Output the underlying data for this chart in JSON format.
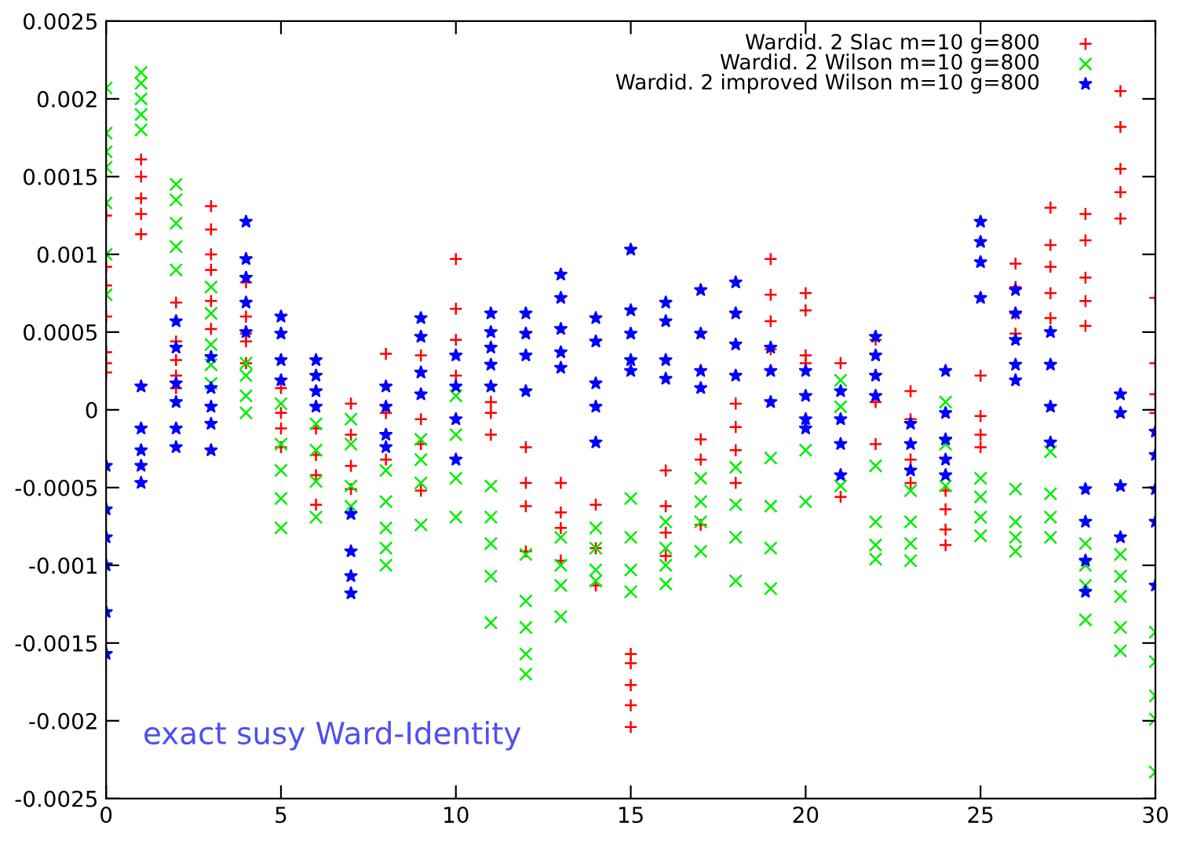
{
  "chart_data": {
    "type": "scatter",
    "xlim": [
      0,
      30
    ],
    "xticks": [
      0,
      5,
      10,
      15,
      20,
      25,
      30
    ],
    "ylim": [
      -0.0025,
      0.0025
    ],
    "yticks": [
      -0.0025,
      -0.002,
      -0.0015,
      -0.001,
      -0.0005,
      0,
      0.0005,
      0.001,
      0.0015,
      0.002,
      0.0025
    ],
    "grid": false,
    "legend": "top right",
    "annotations": [
      "exact susy Ward-Identity"
    ],
    "series": [
      {
        "name": "Wardid. 2 Slac m=10 g=800",
        "color": "#ff0000",
        "marker": "cross",
        "x": [
          0,
          0,
          0,
          0,
          0,
          0,
          0,
          1,
          1,
          1,
          1,
          1,
          2,
          2,
          2,
          2,
          2,
          3,
          3,
          3,
          3,
          3,
          3,
          4,
          4,
          4,
          4,
          4,
          5,
          5,
          5,
          5,
          6,
          6,
          6,
          6,
          7,
          7,
          7,
          7,
          8,
          8,
          8,
          9,
          9,
          9,
          9,
          10,
          10,
          10,
          10,
          11,
          11,
          11,
          12,
          12,
          12,
          12,
          13,
          13,
          13,
          13,
          14,
          14,
          14,
          15,
          15,
          15,
          15,
          15,
          16,
          16,
          16,
          16,
          17,
          17,
          17,
          18,
          18,
          18,
          18,
          19,
          19,
          19,
          19,
          20,
          20,
          20,
          20,
          21,
          21,
          22,
          22,
          22,
          23,
          23,
          23,
          23,
          24,
          24,
          24,
          24,
          25,
          25,
          25,
          25,
          26,
          26,
          26,
          26,
          27,
          27,
          27,
          27,
          27,
          28,
          28,
          28,
          28,
          28,
          29,
          29,
          29,
          29,
          29,
          30,
          30,
          30,
          30
        ],
        "values": [
          0.00125,
          0.00092,
          0.0008,
          0.0006,
          0.00037,
          0.0003,
          0.00024,
          0.00161,
          0.0015,
          0.00136,
          0.00126,
          0.00113,
          0.00069,
          0.00044,
          0.00032,
          0.00022,
          0.00014,
          0.00131,
          0.00116,
          0.001,
          0.0009,
          0.0007,
          0.00052,
          0.00082,
          0.0006,
          0.00049,
          0.00044,
          0.0003,
          0.00014,
          -2e-05,
          -0.00012,
          -0.00024,
          -0.00012,
          -0.00029,
          -0.00042,
          -0.00061,
          4e-05,
          -0.00016,
          -0.00036,
          -0.00051,
          0.00036,
          -2e-05,
          -0.00032,
          0.00035,
          -6e-05,
          -0.00022,
          -0.00052,
          0.00097,
          0.00065,
          0.00045,
          0.00022,
          5e-05,
          -2e-05,
          -0.00016,
          -0.00024,
          -0.00047,
          -0.00062,
          -0.00091,
          -0.00047,
          -0.00066,
          -0.00076,
          -0.00097,
          -0.00061,
          -0.00089,
          -0.00113,
          -0.00157,
          -0.00163,
          -0.00177,
          -0.0019,
          -0.00204,
          -0.00039,
          -0.00062,
          -0.00079,
          -0.00094,
          -0.00019,
          -0.00032,
          -0.00074,
          4e-05,
          -0.00011,
          -0.00026,
          -0.00047,
          0.00097,
          0.00074,
          0.00057,
          0.00039,
          0.00075,
          0.00064,
          0.00035,
          0.0003,
          0.0003,
          -0.00056,
          0.00045,
          5e-05,
          -0.00022,
          0.00012,
          -6e-05,
          -0.00032,
          -0.00047,
          -0.00052,
          -0.00064,
          -0.00077,
          -0.00087,
          0.00022,
          -4e-05,
          -0.00016,
          -0.00024,
          0.00094,
          0.00079,
          0.00062,
          0.00049,
          0.0013,
          0.00106,
          0.00092,
          0.00075,
          0.00059,
          0.00126,
          0.00109,
          0.00085,
          0.0007,
          0.00054,
          0.00205,
          0.00182,
          0.00155,
          0.0014,
          0.00123,
          0.00072,
          0.0003,
          0.0001,
          -2e-05
        ]
      },
      {
        "name": "Wardid. 2 Wilson m=10 g=800",
        "color": "#00ee00",
        "marker": "x",
        "x": [
          0,
          0,
          0,
          0,
          0,
          0,
          0,
          1,
          1,
          1,
          1,
          1,
          2,
          2,
          2,
          2,
          2,
          3,
          3,
          3,
          3,
          3,
          4,
          4,
          4,
          4,
          5,
          5,
          5,
          5,
          5,
          6,
          6,
          6,
          6,
          7,
          7,
          7,
          7,
          8,
          8,
          8,
          8,
          8,
          9,
          9,
          9,
          9,
          10,
          10,
          10,
          10,
          11,
          11,
          11,
          11,
          11,
          12,
          12,
          12,
          12,
          12,
          13,
          13,
          13,
          13,
          14,
          14,
          14,
          14,
          15,
          15,
          15,
          15,
          16,
          16,
          16,
          16,
          17,
          17,
          17,
          17,
          18,
          18,
          18,
          18,
          19,
          19,
          19,
          19,
          20,
          20,
          21,
          21,
          21,
          22,
          22,
          22,
          22,
          23,
          23,
          23,
          23,
          24,
          24,
          24,
          25,
          25,
          25,
          25,
          26,
          26,
          26,
          26,
          27,
          27,
          27,
          27,
          28,
          28,
          28,
          28,
          29,
          29,
          29,
          29,
          29,
          30,
          30,
          30,
          30,
          30
        ],
        "values": [
          0.00207,
          0.00178,
          0.00166,
          0.00156,
          0.00133,
          0.001,
          0.00074,
          0.00217,
          0.0021,
          0.002,
          0.0019,
          0.0018,
          0.00145,
          0.00135,
          0.0012,
          0.00105,
          0.0009,
          0.00079,
          0.00062,
          0.00042,
          0.00029,
          0.00017,
          0.0003,
          0.00022,
          9e-05,
          -2e-05,
          4e-05,
          -0.00022,
          -0.00039,
          -0.00057,
          -0.00076,
          -9e-05,
          -0.00026,
          -0.00046,
          -0.00069,
          -6e-05,
          -0.00022,
          -0.00049,
          -0.00062,
          -0.00039,
          -0.00059,
          -0.00076,
          -0.00089,
          -0.001,
          -0.00019,
          -0.00032,
          -0.00047,
          -0.00074,
          9e-05,
          -0.00016,
          -0.00044,
          -0.00069,
          -0.00049,
          -0.00069,
          -0.00086,
          -0.00107,
          -0.00137,
          -0.00093,
          -0.00123,
          -0.0014,
          -0.00157,
          -0.0017,
          -0.00082,
          -0.001,
          -0.00113,
          -0.00133,
          -0.00076,
          -0.00089,
          -0.00103,
          -0.0011,
          -0.00057,
          -0.00082,
          -0.00103,
          -0.00117,
          -0.00072,
          -0.00089,
          -0.001,
          -0.00112,
          -0.00044,
          -0.00059,
          -0.00072,
          -0.00091,
          -0.00037,
          -0.00061,
          -0.00082,
          -0.0011,
          -0.00031,
          -0.00062,
          -0.00089,
          -0.00115,
          -0.00026,
          -0.00059,
          0.00019,
          2e-05,
          -0.00049,
          -0.00036,
          -0.00072,
          -0.00087,
          -0.00096,
          -0.00052,
          -0.00072,
          -0.00086,
          -0.00097,
          5e-05,
          -0.00022,
          -0.00049,
          -0.00044,
          -0.00056,
          -0.00069,
          -0.00081,
          -0.00051,
          -0.00072,
          -0.00082,
          -0.00091,
          -0.00027,
          -0.00054,
          -0.00069,
          -0.00082,
          -0.00086,
          -0.001,
          -0.00113,
          -0.00135,
          -0.00093,
          -0.00107,
          -0.0012,
          -0.0014,
          -0.00155,
          -0.00143,
          -0.00162,
          -0.00184,
          -0.00199,
          -0.00233
        ]
      },
      {
        "name": "Wardid. 2 improved Wilson m=10 g=800",
        "color": "#0000ff",
        "marker": "star",
        "x": [
          0,
          0,
          0,
          0,
          0,
          0,
          1,
          1,
          1,
          1,
          1,
          2,
          2,
          2,
          2,
          2,
          2,
          3,
          3,
          3,
          3,
          3,
          4,
          4,
          4,
          4,
          4,
          5,
          5,
          5,
          5,
          6,
          6,
          6,
          6,
          7,
          7,
          7,
          7,
          8,
          8,
          8,
          8,
          9,
          9,
          9,
          9,
          10,
          10,
          10,
          10,
          11,
          11,
          11,
          11,
          11,
          12,
          12,
          12,
          12,
          13,
          13,
          13,
          13,
          13,
          14,
          14,
          14,
          14,
          14,
          15,
          15,
          15,
          15,
          15,
          16,
          16,
          16,
          16,
          17,
          17,
          17,
          17,
          18,
          18,
          18,
          18,
          19,
          19,
          19,
          20,
          20,
          20,
          20,
          21,
          21,
          21,
          21,
          22,
          22,
          22,
          22,
          23,
          23,
          23,
          24,
          24,
          24,
          24,
          24,
          25,
          25,
          25,
          25,
          26,
          26,
          26,
          26,
          26,
          27,
          27,
          27,
          27,
          28,
          28,
          28,
          28,
          29,
          29,
          29,
          29,
          30,
          30,
          30,
          30,
          30
        ],
        "values": [
          -0.00036,
          -0.00064,
          -0.00082,
          -0.001,
          -0.0013,
          -0.00157,
          0.00015,
          -0.00012,
          -0.00026,
          -0.00036,
          -0.00047,
          0.00057,
          0.0004,
          0.00017,
          5e-05,
          -0.00012,
          -0.00024,
          0.00034,
          0.00014,
          2e-05,
          -9e-05,
          -0.00026,
          0.00121,
          0.00097,
          0.00085,
          0.00069,
          0.0005,
          0.0006,
          0.00049,
          0.00032,
          0.00019,
          0.00032,
          0.00022,
          0.00012,
          2e-05,
          -0.00067,
          -0.00091,
          -0.00107,
          -0.00118,
          0.00015,
          2e-05,
          -0.00016,
          -0.00024,
          0.00059,
          0.00047,
          0.00024,
          0.0001,
          0.00035,
          0.00015,
          -6e-05,
          -0.00032,
          0.00062,
          0.0005,
          0.0004,
          0.00029,
          0.00015,
          0.00062,
          0.00049,
          0.00035,
          0.00012,
          0.00087,
          0.00072,
          0.00052,
          0.00037,
          0.00027,
          0.00059,
          0.00044,
          0.00017,
          2e-05,
          -0.00021,
          0.00103,
          0.00064,
          0.00049,
          0.00032,
          0.00025,
          0.00069,
          0.00057,
          0.00032,
          0.0002,
          0.00077,
          0.00049,
          0.00025,
          0.00014,
          0.00082,
          0.00062,
          0.00042,
          0.00022,
          0.0004,
          0.00025,
          5e-05,
          0.00025,
          9e-05,
          -6e-05,
          -0.00012,
          0.00012,
          -6e-05,
          -0.00022,
          -0.00042,
          0.00047,
          0.00035,
          0.00022,
          9e-05,
          -9e-05,
          -0.00022,
          -0.00039,
          0.00025,
          -2e-05,
          -0.00019,
          -0.00032,
          -0.00042,
          0.00121,
          0.00108,
          0.00095,
          0.00072,
          0.00077,
          0.00062,
          0.00045,
          0.00029,
          0.00019,
          0.0005,
          0.00029,
          2e-05,
          -0.00021,
          -0.00051,
          -0.00072,
          -0.00097,
          -0.00117,
          0.0001,
          -2e-05,
          -0.00049,
          -0.00082,
          -0.00014,
          -0.00029,
          -0.00051,
          -0.00072,
          -0.00113
        ]
      }
    ]
  }
}
